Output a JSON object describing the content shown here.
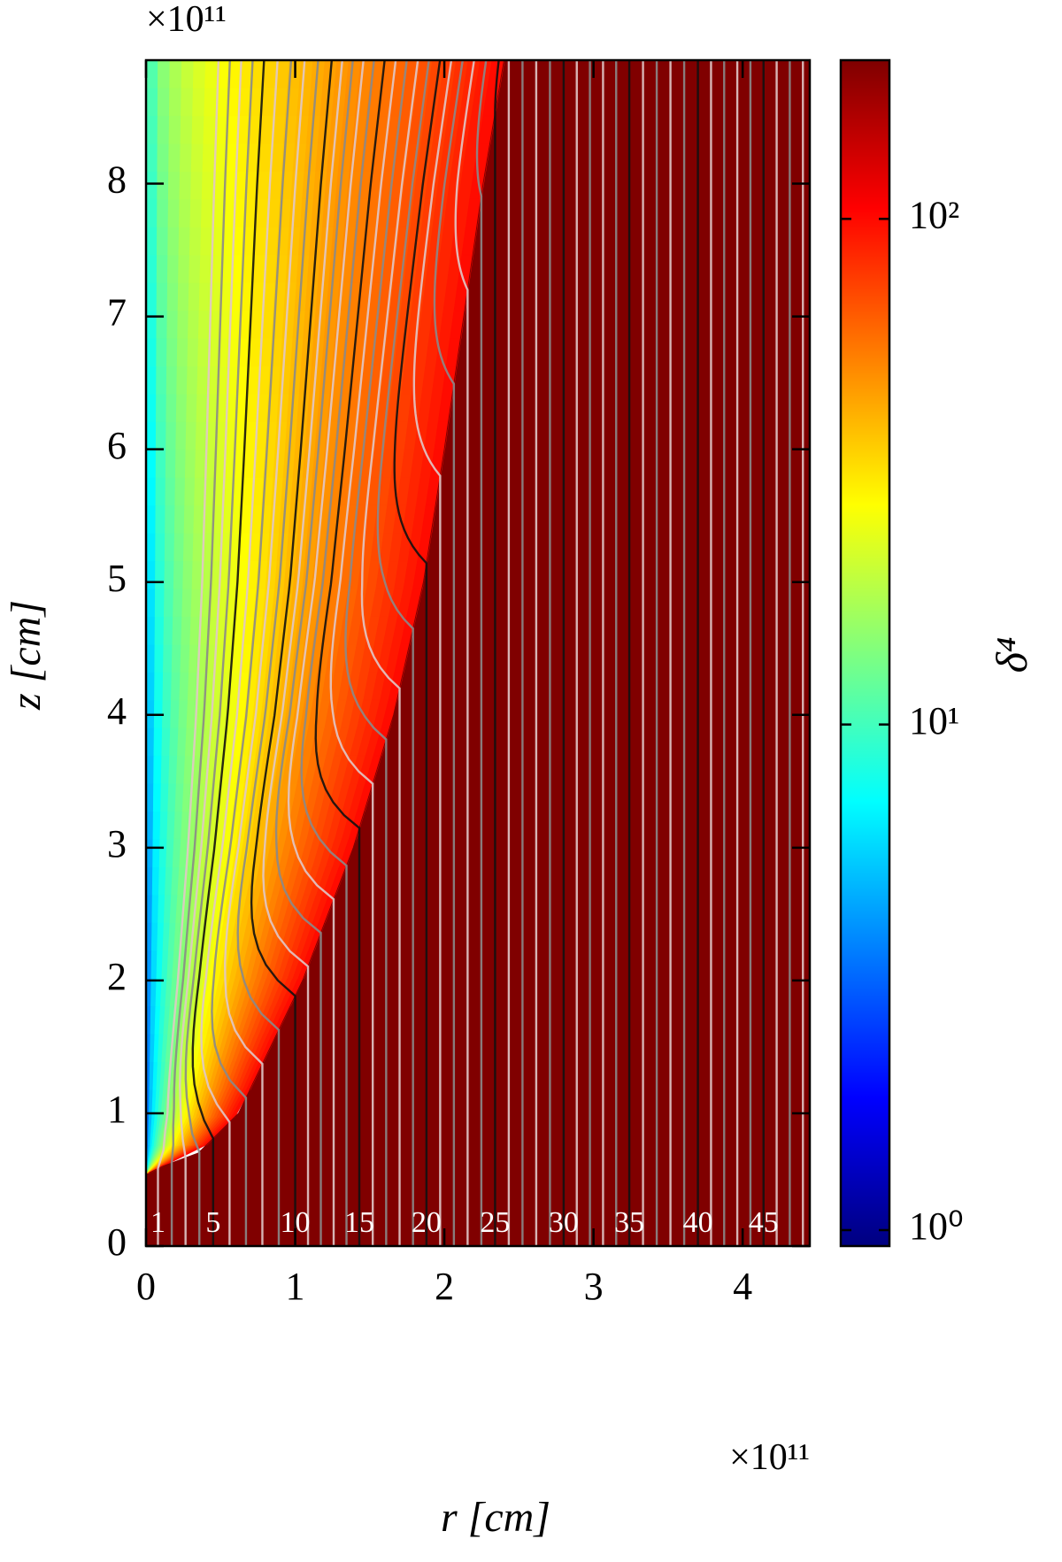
{
  "chart_data": {
    "type": "heatmap",
    "xlabel": "r [cm]",
    "ylabel": "z [cm]",
    "x_multiplier": "×10¹¹",
    "y_multiplier": "×10¹¹",
    "xlim": [
      0,
      4.45
    ],
    "ylim": [
      0,
      8.93
    ],
    "xticks": [
      0,
      1,
      2,
      3,
      4
    ],
    "yticks": [
      0,
      1,
      2,
      3,
      4,
      5,
      6,
      7,
      8
    ],
    "colorbar": {
      "label": "δ⁴",
      "log": true,
      "clim": [
        0.93,
        206
      ],
      "ticks": [
        {
          "value": 1,
          "label": "10⁰"
        },
        {
          "value": 10,
          "label": "10¹"
        },
        {
          "value": 100,
          "label": "10²"
        }
      ],
      "colormap": [
        "#00007f",
        "#0000ff",
        "#007fff",
        "#00ffff",
        "#7fff7f",
        "#ffff00",
        "#ff7f00",
        "#ff0000",
        "#7f0000"
      ]
    },
    "jet_boundary": {
      "z": [
        0.55,
        0.6,
        0.7,
        1,
        2,
        3,
        4,
        5,
        6,
        7,
        8,
        8.93
      ],
      "r": [
        0.02,
        0.11,
        0.35,
        0.62,
        1.05,
        1.39,
        1.66,
        1.86,
        2.0,
        2.13,
        2.26,
        2.4
      ]
    },
    "outside_color": "#800000",
    "line_labels": [
      "1",
      "5",
      "10",
      "15",
      "20",
      "25",
      "30",
      "35",
      "40",
      "45"
    ],
    "line_label_r": [
      0.08,
      0.45,
      1.0,
      1.43,
      1.88,
      2.34,
      2.8,
      3.24,
      3.7,
      4.14
    ]
  }
}
